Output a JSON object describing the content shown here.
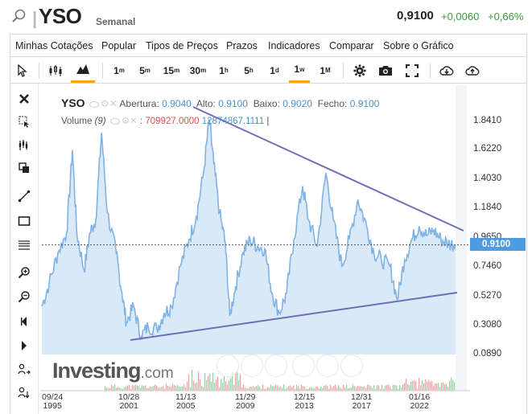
{
  "header": {
    "symbol": "YSO",
    "period": "Semanal",
    "price": "0,9100",
    "change": "+0,0060",
    "change_pct": "+0,66%",
    "icon": "search-icon"
  },
  "menu": [
    "Minhas Cotações",
    "Popular",
    "Tipos de Preços",
    "Prazos",
    "Indicadores",
    "Comparar",
    "Sobre o Gráfico"
  ],
  "toolbar": {
    "timeframes": [
      {
        "main": "1",
        "sup": "m"
      },
      {
        "main": "5",
        "sup": "m"
      },
      {
        "main": "15",
        "sup": "m"
      },
      {
        "main": "30",
        "sup": "m"
      },
      {
        "main": "1",
        "sup": "h"
      },
      {
        "main": "5",
        "sup": "h"
      },
      {
        "main": "1",
        "sup": "d"
      },
      {
        "main": "1",
        "sup": "w"
      },
      {
        "main": "1",
        "sup": "M"
      }
    ],
    "active_timeframe": "1w",
    "icons": [
      "cursor-icon",
      "candles-icon",
      "area-chart-icon",
      "gear-icon",
      "camera-icon",
      "fullscreen-icon",
      "download-icon",
      "upload-icon"
    ]
  },
  "left_tools": [
    "close-icon",
    "crosshair-icon",
    "magnet-icon",
    "copy-icon",
    "trendline-icon",
    "rectangle-icon",
    "fibonacci-icon",
    "zoom-in-icon",
    "zoom-out-icon",
    "scroll-left-icon",
    "scroll-right-icon",
    "text-tool-icon",
    "pointer-icon"
  ],
  "legend": {
    "symbol": "YSO",
    "open_label": "Abertura:",
    "open": "0.9040",
    "high_label": "Alto:",
    "high": "0.9100",
    "low_label": "Baixo:",
    "low": "0.9020",
    "close_label": "Fecho:",
    "close": "0.9100",
    "volume_label": "Volume",
    "volume_param": "(9)",
    "volume_value": "709927.0000",
    "volume_ma": "12874867.1111",
    "cursor_mark": "|"
  },
  "price_tag": "0.9100",
  "colors": {
    "accent": "#f4a70e",
    "up": "#3b9b3b",
    "line": "#7fb2e5",
    "area": "#d9e9f8",
    "trendline": "#6e6fb8",
    "tag": "#4f9be2",
    "volume_red": "#d9534f"
  },
  "logo": {
    "brand": "Investing",
    "suffix": ".com"
  },
  "chart_data": {
    "type": "area",
    "y_ticks": [
      "1.8410",
      "1.6220",
      "1.4030",
      "1.1840",
      "0.9650",
      "0.7460",
      "0.5270",
      "0.3080",
      "0.0890"
    ],
    "x_ticks": [
      {
        "date": "09/24",
        "year": "1995"
      },
      {
        "date": "10/28",
        "year": "2001"
      },
      {
        "date": "11/13",
        "year": "2005"
      },
      {
        "date": "11/29",
        "year": "2009"
      },
      {
        "date": "12/15",
        "year": "2013"
      },
      {
        "date": "12/31",
        "year": "2017"
      },
      {
        "date": "01/16",
        "year": "2022"
      }
    ],
    "ylim": [
      0.0,
      1.95
    ],
    "last_value": 0.91,
    "series": [
      {
        "values": [
          [
            1995.7,
            0.45
          ],
          [
            1996.2,
            0.62
          ],
          [
            1996.8,
            0.85
          ],
          [
            1997.4,
            1.0
          ],
          [
            1997.8,
            1.62
          ],
          [
            1998.1,
            1.0
          ],
          [
            1998.6,
            0.72
          ],
          [
            1999.0,
            1.0
          ],
          [
            1999.4,
            1.1
          ],
          [
            1999.8,
            1.75
          ],
          [
            2000.2,
            1.15
          ],
          [
            2000.8,
            0.85
          ],
          [
            2001.2,
            0.55
          ],
          [
            2001.5,
            0.33
          ],
          [
            2002.0,
            0.45
          ],
          [
            2002.5,
            0.22
          ],
          [
            2003.0,
            0.3
          ],
          [
            2003.6,
            0.28
          ],
          [
            2004.1,
            0.4
          ],
          [
            2004.6,
            0.45
          ],
          [
            2005.2,
            0.75
          ],
          [
            2005.8,
            0.95
          ],
          [
            2006.3,
            1.12
          ],
          [
            2006.8,
            1.45
          ],
          [
            2007.2,
            1.85
          ],
          [
            2007.5,
            1.52
          ],
          [
            2007.9,
            1.15
          ],
          [
            2008.3,
            0.92
          ],
          [
            2008.6,
            0.38
          ],
          [
            2009.0,
            0.6
          ],
          [
            2009.5,
            0.85
          ],
          [
            2010.0,
            0.95
          ],
          [
            2010.5,
            0.9
          ],
          [
            2011.0,
            0.88
          ],
          [
            2011.5,
            0.55
          ],
          [
            2012.0,
            0.4
          ],
          [
            2012.5,
            0.55
          ],
          [
            2013.0,
            0.95
          ],
          [
            2013.6,
            1.35
          ],
          [
            2014.0,
            1.1
          ],
          [
            2014.6,
            0.9
          ],
          [
            2015.2,
            1.45
          ],
          [
            2015.7,
            1.1
          ],
          [
            2016.3,
            0.75
          ],
          [
            2016.8,
            0.95
          ],
          [
            2017.4,
            1.25
          ],
          [
            2018.0,
            1.05
          ],
          [
            2018.5,
            0.85
          ],
          [
            2019.0,
            0.8
          ],
          [
            2019.6,
            0.75
          ],
          [
            2020.1,
            0.5
          ],
          [
            2020.6,
            0.8
          ],
          [
            2021.1,
            0.95
          ],
          [
            2021.6,
            1.05
          ],
          [
            2022.1,
            0.98
          ],
          [
            2022.6,
            1.02
          ],
          [
            2023.1,
            0.95
          ],
          [
            2023.6,
            0.92
          ],
          [
            2024.1,
            0.91
          ]
        ]
      }
    ]
  }
}
